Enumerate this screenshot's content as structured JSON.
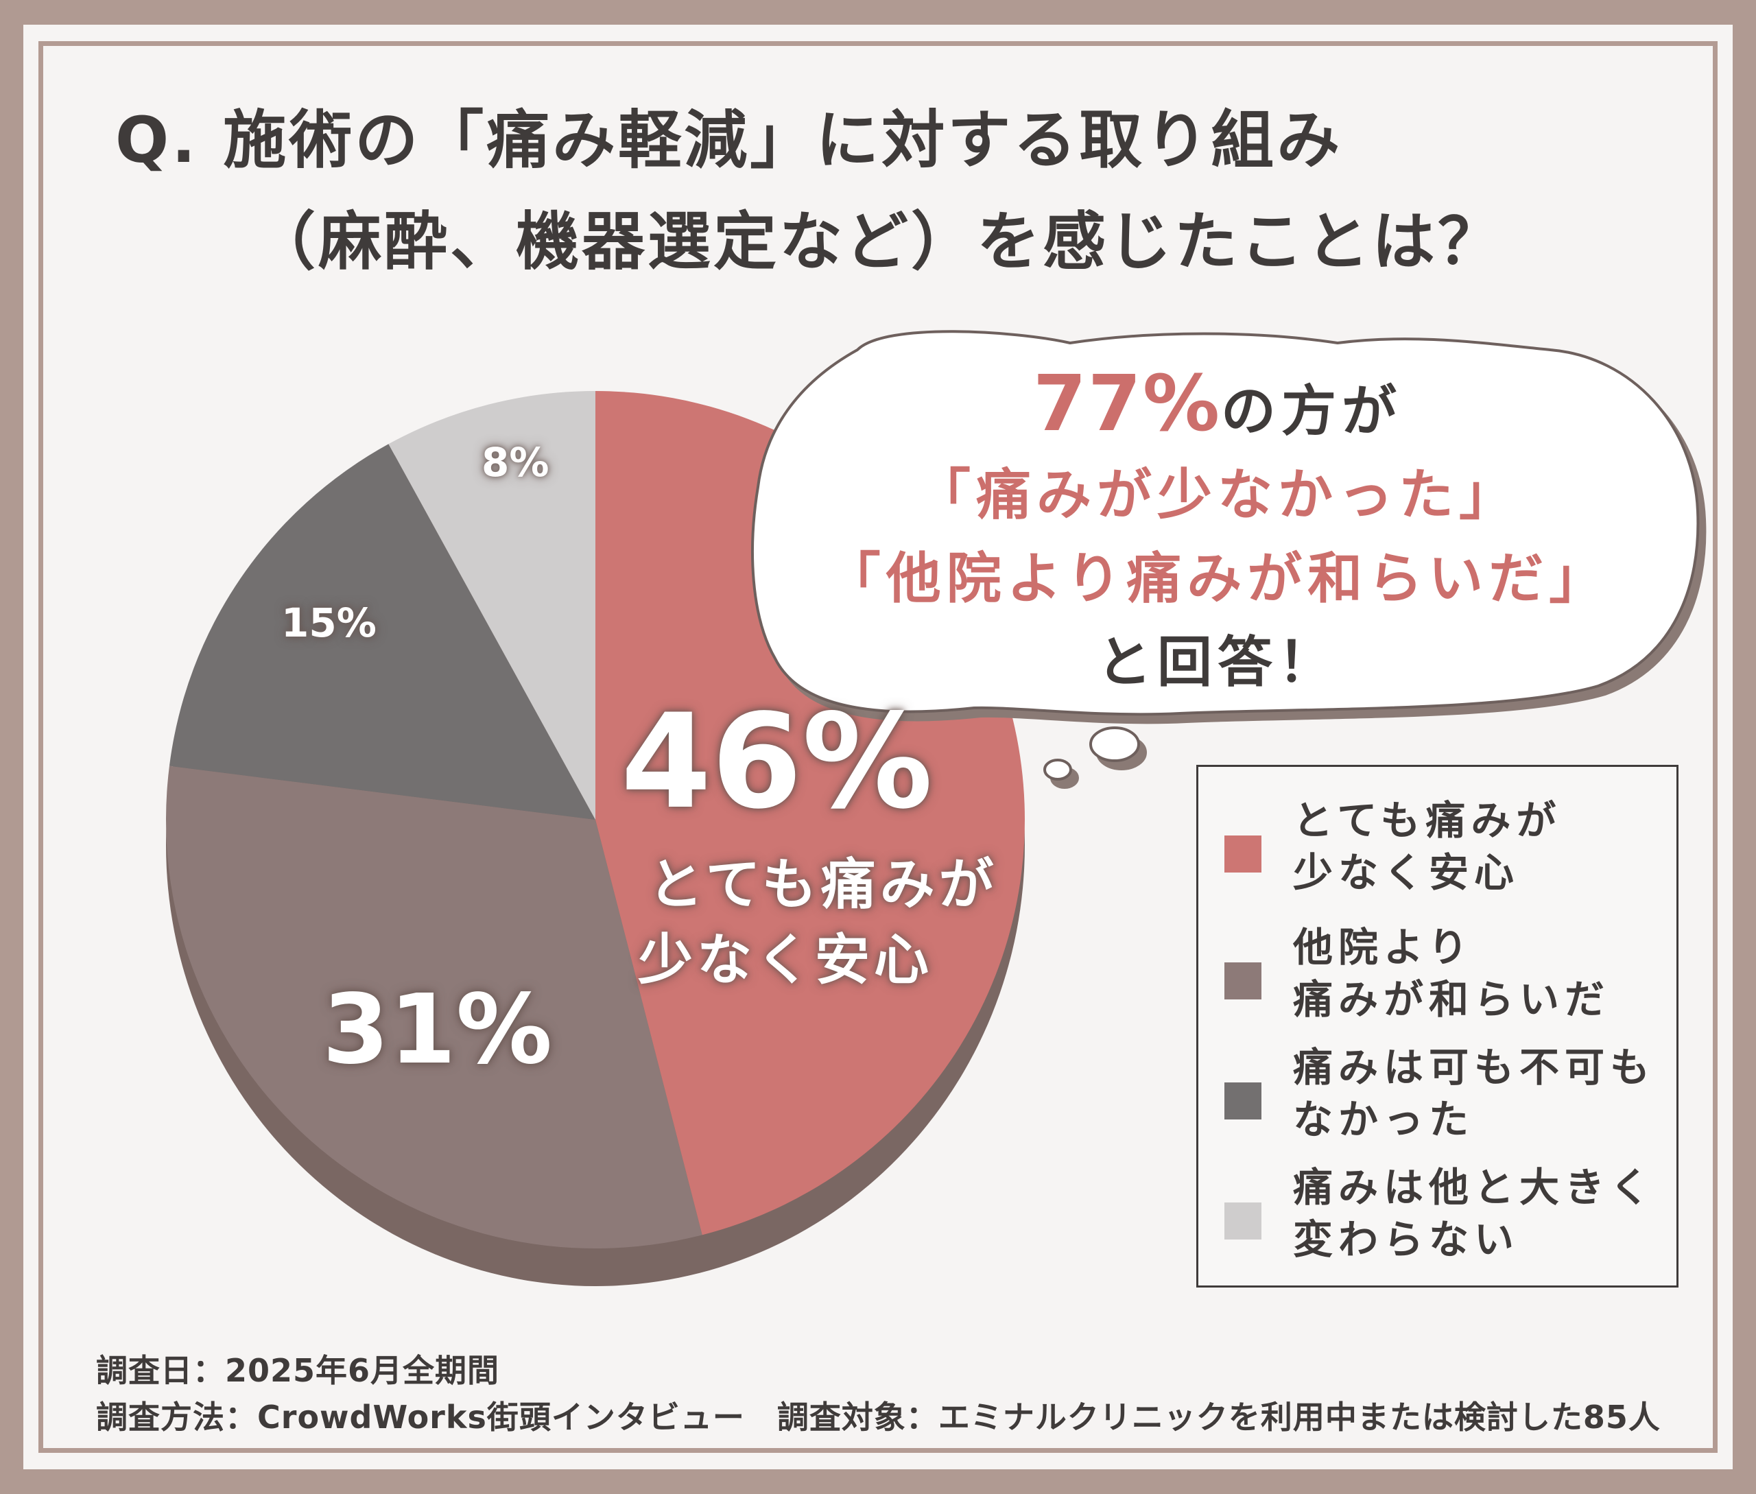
{
  "title": {
    "line1": "Q. 施術の「痛み軽減」に対する取り組み",
    "line2": "（麻酔、機器選定など）を感じたことは？"
  },
  "callout": {
    "percent": "77%",
    "line1_suffix": "の方が",
    "line2": "「痛みが少なかった」",
    "line3": "「他院より痛みが和らいだ」",
    "line4": "と回答！"
  },
  "chart_data": {
    "type": "pie",
    "categories": [
      "とても痛みが少なく安心",
      "他院より痛みが和らいだ",
      "痛みは可も不可もなかった",
      "痛みは他と大きく変わらない"
    ],
    "values": [
      46,
      31,
      15,
      8
    ],
    "labels": [
      "46%",
      "31%",
      "15%",
      "8%"
    ],
    "colors": [
      "#cd7673",
      "#8d7a78",
      "#737070",
      "#cfcdcd"
    ],
    "annotation": "とても痛みが少なく安心",
    "legend": "right",
    "legend_entries": [
      "とても痛みが少なく安心",
      "他院より痛みが和らいだ",
      "痛みは可も不可もなかった",
      "痛みは他と大きく変わらない"
    ]
  },
  "legend": {
    "items": [
      {
        "line1": "とても痛みが",
        "line2": "少なく安心",
        "color": "#cd7673"
      },
      {
        "line1": "他院より",
        "line2": "痛みが和らいだ",
        "color": "#8d7a78"
      },
      {
        "line1": "痛みは可も不可も",
        "line2": "なかった",
        "color": "#737070"
      },
      {
        "line1": "痛みは他と大きく",
        "line2": "変わらない",
        "color": "#cfcdcd"
      }
    ]
  },
  "pie_annotation": {
    "line1": "とても痛みが",
    "line2": "少なく安心"
  },
  "footer": {
    "line1": "調査日：2025年6月全期間",
    "line2": "調査方法：CrowdWorks街頭インタビュー　調査対象：エミナルクリニックを利用中または検討した85人"
  }
}
